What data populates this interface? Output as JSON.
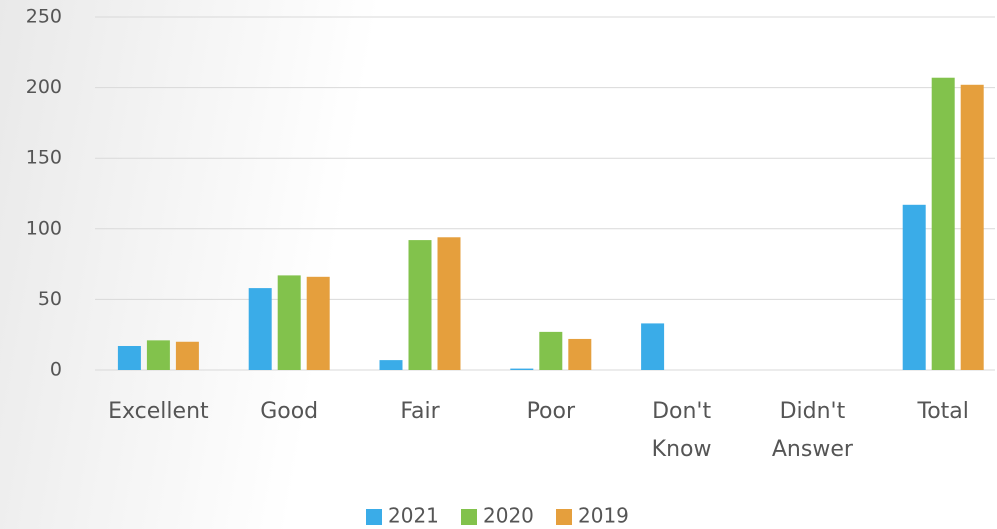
{
  "chart_data": {
    "type": "bar",
    "categories": [
      "Excellent",
      "Good",
      "Fair",
      "Poor",
      "Don't Know",
      "Didn't Answer",
      "Total"
    ],
    "series": [
      {
        "name": "2021",
        "color": "#3aace8",
        "values": [
          17,
          58,
          7,
          1,
          33,
          0,
          117
        ]
      },
      {
        "name": "2020",
        "color": "#82c24c",
        "values": [
          21,
          67,
          92,
          27,
          0,
          0,
          207
        ]
      },
      {
        "name": "2019",
        "color": "#e59f3d",
        "values": [
          20,
          66,
          94,
          22,
          0,
          0,
          202
        ]
      }
    ],
    "ylim": [
      0,
      250
    ],
    "yticks": [
      0,
      50,
      100,
      150,
      200,
      250
    ],
    "grid": true,
    "legend": "bottom"
  }
}
